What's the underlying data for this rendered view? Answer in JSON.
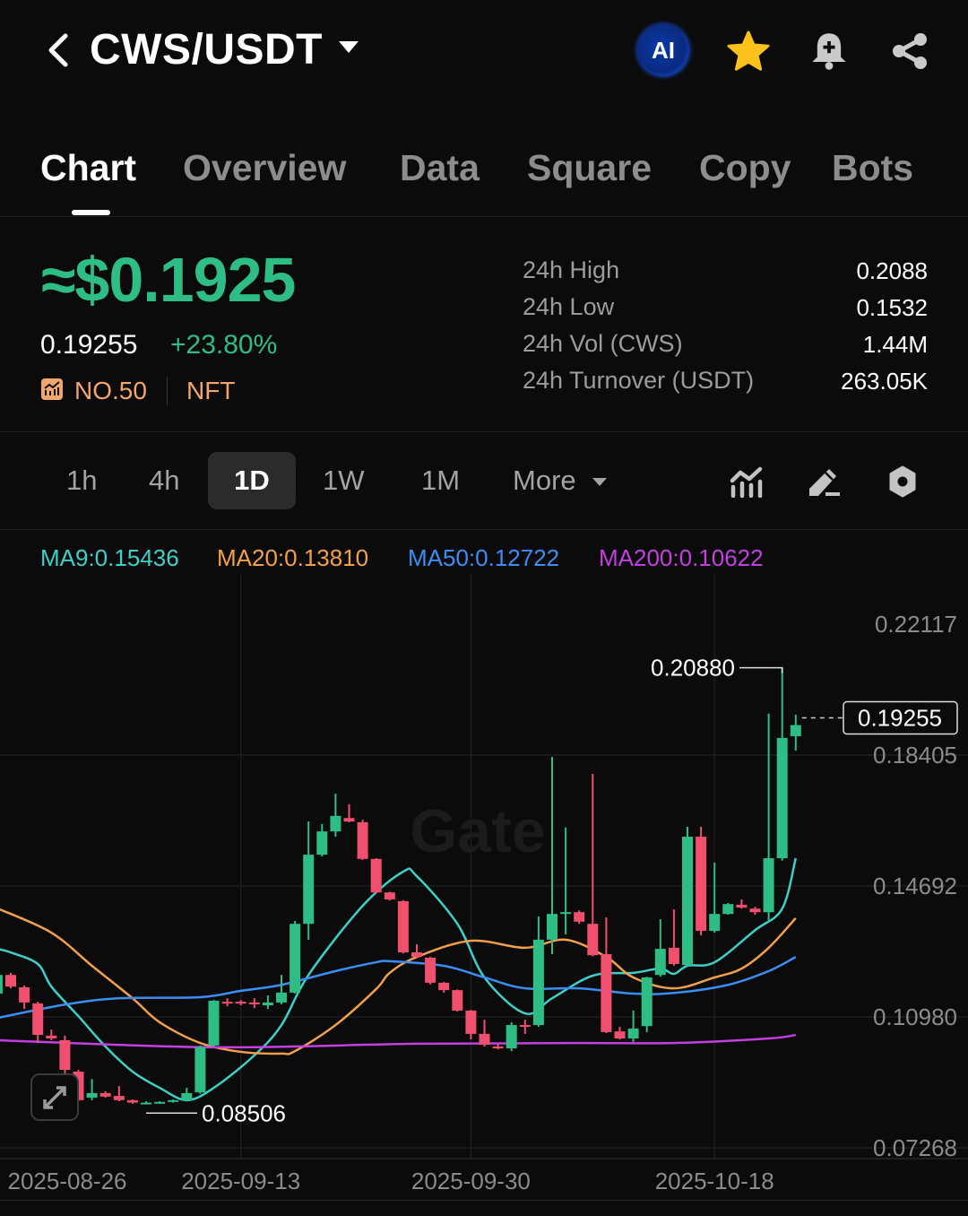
{
  "header": {
    "title": "CWS/USDT",
    "ai_label": "AI",
    "icons": [
      "back-chevron-icon",
      "caret-down-icon",
      "ai-icon",
      "star-icon",
      "bell-plus-icon",
      "share-icon"
    ]
  },
  "tabs": [
    {
      "label": "Chart",
      "active": true
    },
    {
      "label": "Overview"
    },
    {
      "label": "Data"
    },
    {
      "label": "Square"
    },
    {
      "label": "Copy"
    },
    {
      "label": "Bots"
    }
  ],
  "price": {
    "approx_usd": "≈$0.1925",
    "last": "0.19255",
    "change": "+23.80%",
    "rank": "NO.50",
    "category": "NFT"
  },
  "stats": [
    {
      "label": "24h High",
      "value": "0.2088"
    },
    {
      "label": "24h Low",
      "value": "0.1532"
    },
    {
      "label": "24h Vol (CWS)",
      "value": "1.44M"
    },
    {
      "label": "24h Turnover (USDT)",
      "value": "263.05K"
    }
  ],
  "timeframes": {
    "items": [
      "1h",
      "4h",
      "1D",
      "1W",
      "1M"
    ],
    "selected": "1D",
    "more_label": "More"
  },
  "toolbar_icons": [
    "indicator-icon",
    "draw-pen-icon",
    "settings-gear-icon"
  ],
  "ma_legend": [
    {
      "label": "MA9:0.15436",
      "color": "#3fcfc9"
    },
    {
      "label": "MA20:0.13810",
      "color": "#f2a04a"
    },
    {
      "label": "MA50:0.12722",
      "color": "#3a8ef6"
    },
    {
      "label": "MA200:0.10622",
      "color": "#c33fe0"
    }
  ],
  "colors": {
    "up": "#2ebd85",
    "down": "#f0506e",
    "accent_orange": "#f2a66b",
    "background": "#0b0b0b"
  },
  "chart_data": {
    "type": "candlestick",
    "interval": "1D",
    "watermark": "Gate",
    "ylim": [
      0.07268,
      0.22117
    ],
    "y_ticks": [
      "0.22117",
      "0.18405",
      "0.14692",
      "0.10980",
      "0.07268"
    ],
    "x_ticks": [
      "2025-08-26",
      "2025-09-13",
      "2025-09-30",
      "2025-10-18"
    ],
    "grid": true,
    "high_label": "0.20880",
    "low_label": "0.08506",
    "last_price_label": "0.19255",
    "candles_columns": [
      "date",
      "open",
      "high",
      "low",
      "close"
    ],
    "candles": [
      [
        "2025-08-26",
        0.1164,
        0.1223,
        0.1159,
        0.1217
      ],
      [
        "2025-08-27",
        0.1217,
        0.1223,
        0.1179,
        0.1184
      ],
      [
        "2025-08-28",
        0.1182,
        0.1187,
        0.1121,
        0.1139
      ],
      [
        "2025-08-29",
        0.1136,
        0.1141,
        0.1024,
        0.1047
      ],
      [
        "2025-08-30",
        0.1045,
        0.1062,
        0.1032,
        0.1037
      ],
      [
        "2025-08-31",
        0.1032,
        0.1045,
        0.0925,
        0.0948
      ],
      [
        "2025-09-01",
        0.0943,
        0.0948,
        0.0859,
        0.0862
      ],
      [
        "2025-09-02",
        0.0869,
        0.0922,
        0.0862,
        0.0882
      ],
      [
        "2025-09-03",
        0.0882,
        0.0887,
        0.0869,
        0.0872
      ],
      [
        "2025-09-04",
        0.0874,
        0.0902,
        0.0859,
        0.0862
      ],
      [
        "2025-09-05",
        0.0862,
        0.0864,
        0.0852,
        0.0855
      ],
      [
        "2025-09-06",
        0.0853,
        0.0859,
        0.08506,
        0.0855
      ],
      [
        "2025-09-07",
        0.0855,
        0.0859,
        0.0852,
        0.0857
      ],
      [
        "2025-09-08",
        0.0857,
        0.0864,
        0.0855,
        0.0862
      ],
      [
        "2025-09-09",
        0.0862,
        0.0897,
        0.0858,
        0.0882
      ],
      [
        "2025-09-10",
        0.0884,
        0.1017,
        0.088,
        0.1012
      ],
      [
        "2025-09-11",
        0.1017,
        0.1146,
        0.1014,
        0.1144
      ],
      [
        "2025-09-12",
        0.1141,
        0.1151,
        0.1128,
        0.1139
      ],
      [
        "2025-09-13",
        0.1141,
        0.1146,
        0.1131,
        0.1138
      ],
      [
        "2025-09-14",
        0.1139,
        0.1151,
        0.1123,
        0.1134
      ],
      [
        "2025-09-15",
        0.1131,
        0.1159,
        0.1121,
        0.1139
      ],
      [
        "2025-09-16",
        0.1139,
        0.1217,
        0.1134,
        0.1167
      ],
      [
        "2025-09-17",
        0.1167,
        0.137,
        0.1164,
        0.1362
      ],
      [
        "2025-09-18",
        0.1362,
        0.1652,
        0.1317,
        0.1558
      ],
      [
        "2025-09-19",
        0.1558,
        0.1645,
        0.1553,
        0.1624
      ],
      [
        "2025-09-20",
        0.1624,
        0.1731,
        0.1609,
        0.1668
      ],
      [
        "2025-09-21",
        0.1662,
        0.1701,
        0.165,
        0.1652
      ],
      [
        "2025-09-22",
        0.165,
        0.1657,
        0.1543,
        0.1546
      ],
      [
        "2025-09-23",
        0.1546,
        0.1548,
        0.1448,
        0.1451
      ],
      [
        "2025-09-24",
        0.1451,
        0.1453,
        0.1428,
        0.1431
      ],
      [
        "2025-09-25",
        0.1426,
        0.1429,
        0.1278,
        0.1281
      ],
      [
        "2025-09-26",
        0.1281,
        0.1304,
        0.1266,
        0.1268
      ],
      [
        "2025-09-27",
        0.1266,
        0.1268,
        0.119,
        0.1195
      ],
      [
        "2025-09-28",
        0.1195,
        0.1197,
        0.1167,
        0.1174
      ],
      [
        "2025-09-29",
        0.1174,
        0.1176,
        0.1113,
        0.1116
      ],
      [
        "2025-09-30",
        0.1116,
        0.1118,
        0.1034,
        0.105
      ],
      [
        "2025-10-01",
        0.105,
        0.109,
        0.1014,
        0.1019
      ],
      [
        "2025-10-02",
        0.1014,
        0.1022,
        0.1006,
        0.1009
      ],
      [
        "2025-10-03",
        0.1009,
        0.1083,
        0.1001,
        0.1075
      ],
      [
        "2025-10-04",
        0.1075,
        0.109,
        0.105,
        0.1072
      ],
      [
        "2025-10-05",
        0.1075,
        0.1383,
        0.107,
        0.1317
      ],
      [
        "2025-10-06",
        0.1317,
        0.1835,
        0.1276,
        0.139
      ],
      [
        "2025-10-07",
        0.1393,
        0.1635,
        0.1332,
        0.1395
      ],
      [
        "2025-10-08",
        0.1395,
        0.14,
        0.1362,
        0.1368
      ],
      [
        "2025-10-09",
        0.1362,
        0.1787,
        0.127,
        0.1273
      ],
      [
        "2025-10-10",
        0.1276,
        0.138,
        0.1052,
        0.1055
      ],
      [
        "2025-10-11",
        0.1057,
        0.107,
        0.1034,
        0.1037
      ],
      [
        "2025-10-12",
        0.1037,
        0.1116,
        0.1027,
        0.1065
      ],
      [
        "2025-10-13",
        0.1072,
        0.1212,
        0.1055,
        0.121
      ],
      [
        "2025-10-14",
        0.1217,
        0.1375,
        0.1212,
        0.1291
      ],
      [
        "2025-10-15",
        0.1294,
        0.1403,
        0.1243,
        0.1248
      ],
      [
        "2025-10-16",
        0.1245,
        0.1637,
        0.1243,
        0.1609
      ],
      [
        "2025-10-17",
        0.1609,
        0.1637,
        0.1329,
        0.1342
      ],
      [
        "2025-10-18",
        0.1342,
        0.1535,
        0.1337,
        0.139
      ],
      [
        "2025-10-19",
        0.139,
        0.1421,
        0.1388,
        0.1418
      ],
      [
        "2025-10-20",
        0.1416,
        0.1431,
        0.1405,
        0.1408
      ],
      [
        "2025-10-21",
        0.1405,
        0.141,
        0.1388,
        0.1395
      ],
      [
        "2025-10-22",
        0.1395,
        0.1958,
        0.1368,
        0.1548
      ],
      [
        "2025-10-23",
        0.1548,
        0.2088,
        0.1541,
        0.1889
      ],
      [
        "2025-10-24",
        0.1894,
        0.1955,
        0.1853,
        0.19255
      ]
    ],
    "series": [
      {
        "name": "MA9",
        "color": "#3fcfc9",
        "points": [
          [
            "2025-08-26",
            0.1291
          ],
          [
            "2025-08-27",
            0.1281
          ],
          [
            "2025-08-29",
            0.1248
          ],
          [
            "2025-08-30",
            0.1184
          ],
          [
            "2025-09-01",
            0.11
          ],
          [
            "2025-09-03",
            0.1014
          ],
          [
            "2025-09-05",
            0.0943
          ],
          [
            "2025-09-07",
            0.0897
          ],
          [
            "2025-09-09",
            0.0862
          ],
          [
            "2025-09-11",
            0.0897
          ],
          [
            "2025-09-14",
            0.0989
          ],
          [
            "2025-09-16",
            0.1075
          ],
          [
            "2025-09-18",
            0.1217
          ],
          [
            "2025-09-22",
            0.1413
          ],
          [
            "2025-09-25",
            0.151
          ],
          [
            "2025-09-26",
            0.1497
          ],
          [
            "2025-09-29",
            0.1362
          ],
          [
            "2025-10-01",
            0.121
          ],
          [
            "2025-10-04",
            0.1108
          ],
          [
            "2025-10-06",
            0.1151
          ],
          [
            "2025-10-09",
            0.1215
          ],
          [
            "2025-10-12",
            0.1223
          ],
          [
            "2025-10-14",
            0.1235
          ],
          [
            "2025-10-15",
            0.122
          ],
          [
            "2025-10-16",
            0.1243
          ],
          [
            "2025-10-18",
            0.1253
          ],
          [
            "2025-10-21",
            0.1344
          ],
          [
            "2025-10-23",
            0.1405
          ],
          [
            "2025-10-24",
            0.1548
          ]
        ]
      },
      {
        "name": "MA20",
        "color": "#f2a04a",
        "points": [
          [
            "2025-08-26",
            0.1406
          ],
          [
            "2025-08-30",
            0.1337
          ],
          [
            "2025-09-02",
            0.1243
          ],
          [
            "2025-09-05",
            0.1151
          ],
          [
            "2025-09-07",
            0.1083
          ],
          [
            "2025-09-10",
            0.1024
          ],
          [
            "2025-09-13",
            0.0999
          ],
          [
            "2025-09-16",
            0.0994
          ],
          [
            "2025-09-17",
            0.1001
          ],
          [
            "2025-09-20",
            0.1075
          ],
          [
            "2025-09-23",
            0.1177
          ],
          [
            "2025-09-24",
            0.1223
          ],
          [
            "2025-09-26",
            0.1268
          ],
          [
            "2025-09-30",
            0.1314
          ],
          [
            "2025-10-04",
            0.1294
          ],
          [
            "2025-10-07",
            0.1317
          ],
          [
            "2025-10-10",
            0.1268
          ],
          [
            "2025-10-12",
            0.121
          ],
          [
            "2025-10-15",
            0.1179
          ],
          [
            "2025-10-18",
            0.121
          ],
          [
            "2025-10-20",
            0.1235
          ],
          [
            "2025-10-22",
            0.1294
          ],
          [
            "2025-10-24",
            0.1378
          ]
        ]
      },
      {
        "name": "MA50",
        "color": "#3a8ef6",
        "points": [
          [
            "2025-08-26",
            0.1095
          ],
          [
            "2025-08-31",
            0.1133
          ],
          [
            "2025-09-04",
            0.1151
          ],
          [
            "2025-09-10",
            0.1154
          ],
          [
            "2025-09-13",
            0.1172
          ],
          [
            "2025-09-16",
            0.1189
          ],
          [
            "2025-09-20",
            0.1228
          ],
          [
            "2025-09-23",
            0.1253
          ],
          [
            "2025-09-24",
            0.1256
          ],
          [
            "2025-09-28",
            0.1243
          ],
          [
            "2025-10-01",
            0.121
          ],
          [
            "2025-10-04",
            0.1179
          ],
          [
            "2025-10-08",
            0.1179
          ],
          [
            "2025-10-12",
            0.1164
          ],
          [
            "2025-10-15",
            0.1166
          ],
          [
            "2025-10-19",
            0.1189
          ],
          [
            "2025-10-22",
            0.1228
          ],
          [
            "2025-10-24",
            0.1268
          ]
        ]
      },
      {
        "name": "MA200",
        "color": "#c33fe0",
        "points": [
          [
            "2025-08-26",
            0.1032
          ],
          [
            "2025-09-11",
            0.1012
          ],
          [
            "2025-09-26",
            0.1022
          ],
          [
            "2025-10-08",
            0.1024
          ],
          [
            "2025-10-15",
            0.1024
          ],
          [
            "2025-10-22",
            0.1037
          ],
          [
            "2025-10-24",
            0.1047
          ]
        ]
      }
    ]
  }
}
